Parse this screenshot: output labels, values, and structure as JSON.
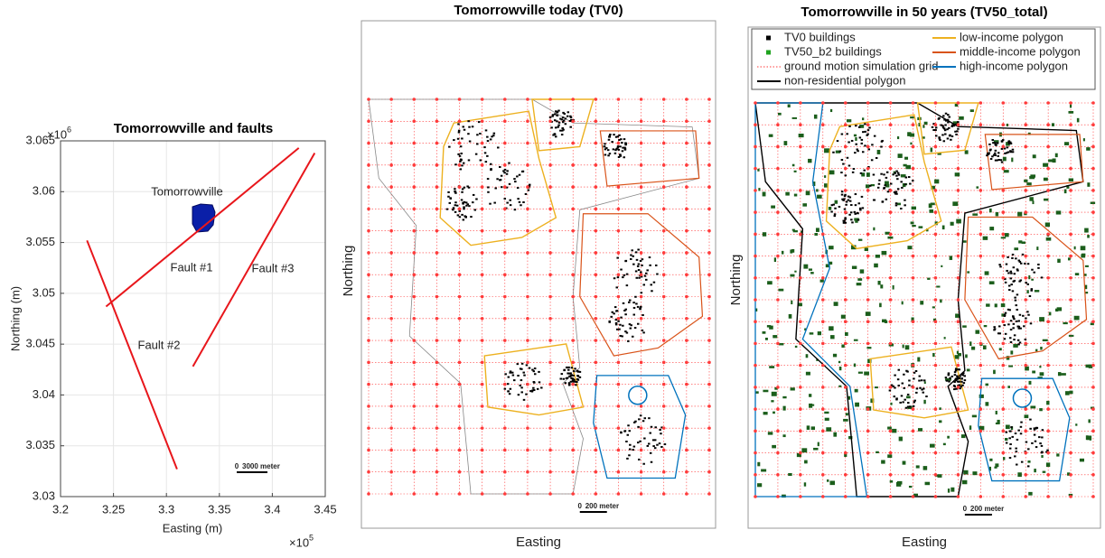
{
  "chart_data": {
    "type": "line",
    "title": "Tomorrowville and faults",
    "x_label": "Easting (m)",
    "y_label": "Northing (m)",
    "x_multiplier": "×10",
    "x_multiplier_exp": "5",
    "y_multiplier": "×10",
    "y_multiplier_exp": "6",
    "xlim": [
      3.2,
      3.45
    ],
    "ylim": [
      3.03,
      3.065
    ],
    "xticks": [
      3.2,
      3.25,
      3.3,
      3.35,
      3.4,
      3.45
    ],
    "yticks": [
      3.03,
      3.035,
      3.04,
      3.045,
      3.05,
      3.055,
      3.06,
      3.065
    ],
    "grid": true,
    "series": [
      {
        "name": "Fault #1",
        "color": "#e8161b",
        "x": [
          3.243,
          3.425
        ],
        "y": [
          3.0487,
          3.0643
        ]
      },
      {
        "name": "Fault #2",
        "color": "#e8161b",
        "x": [
          3.225,
          3.31
        ],
        "y": [
          3.0552,
          3.0327
        ]
      },
      {
        "name": "Fault #3",
        "color": "#e8161b",
        "x": [
          3.325,
          3.44
        ],
        "y": [
          3.0428,
          3.0638
        ]
      }
    ],
    "area_label": "Tomorrowville",
    "area_color": "#0a1fa8",
    "scale_bar_start": 0,
    "scale_bar_label": "3000 meter"
  },
  "maps": [
    {
      "title": "Tomorrowville today (TV0)",
      "x_label": "Easting",
      "y_label": "Northing",
      "scale_bar_start": 0,
      "scale_bar_label": "200 meter"
    },
    {
      "title": "Tomorrowville in 50 years (TV50_total)",
      "x_label": "Easting",
      "y_label": "Northing",
      "scale_bar_start": 0,
      "scale_bar_label": "200 meter",
      "legend": [
        {
          "label": "TV0 buildings",
          "color": "#000000"
        },
        {
          "label": "TV50_b2 buildings",
          "color": "#1fa31f"
        },
        {
          "label": "ground motion simulation grid",
          "color": "#ff3b3b"
        },
        {
          "label": "non-residential polygon",
          "color": "#000000"
        },
        {
          "label": "low-income polygon",
          "color": "#edb120"
        },
        {
          "label": "middle-income polygon",
          "color": "#d95319"
        },
        {
          "label": "high-income polygon",
          "color": "#0072bd"
        }
      ]
    }
  ]
}
